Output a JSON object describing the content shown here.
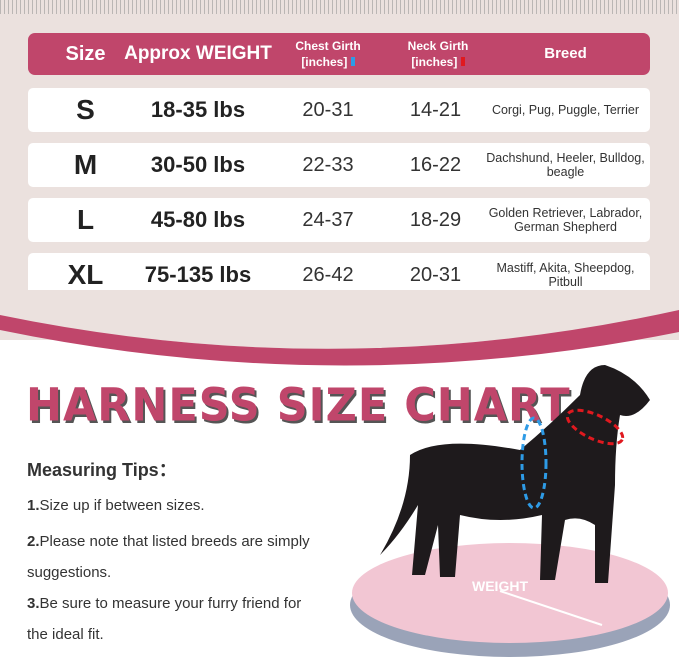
{
  "header": {
    "size": "Size",
    "weight": "Approx WEIGHT",
    "chest": "Chest Girth",
    "chest_unit": "[inches]",
    "neck": "Neck Girth",
    "neck_unit": "[inches]",
    "breed": "Breed"
  },
  "rows": [
    {
      "size": "S",
      "weight": "18-35 lbs",
      "chest": "20-31",
      "neck": "14-21",
      "breed": "Corgi, Pug, Puggle, Terrier"
    },
    {
      "size": "M",
      "weight": "30-50 lbs",
      "chest": "22-33",
      "neck": "16-22",
      "breed": "Dachshund, Heeler, Bulldog, beagle"
    },
    {
      "size": "L",
      "weight": "45-80 lbs",
      "chest": "24-37",
      "neck": "18-29",
      "breed": "Golden Retriever, Labrador, German Shepherd"
    },
    {
      "size": "XL",
      "weight": "75-135 lbs",
      "chest": "26-42",
      "neck": "20-31",
      "breed": "Mastiff, Akita, Sheepdog,  Pitbull"
    }
  ],
  "title": "HARNESS SIZE CHART",
  "tips": {
    "heading": "Measuring Tips：",
    "items": [
      {
        "num": "1.",
        "text": "Size up if between sizes."
      },
      {
        "num": "2.",
        "text": "Please note that listed breeds are simply suggestions."
      },
      {
        "num": "3.",
        "text": "Be sure to measure your furry friend for the ideal fit."
      }
    ]
  },
  "scale_label": "WEIGHT",
  "colors": {
    "brand": "#c0466b",
    "chest_marker": "#2e9be6",
    "neck_marker": "#e0191f",
    "background": "#ebe1de"
  }
}
